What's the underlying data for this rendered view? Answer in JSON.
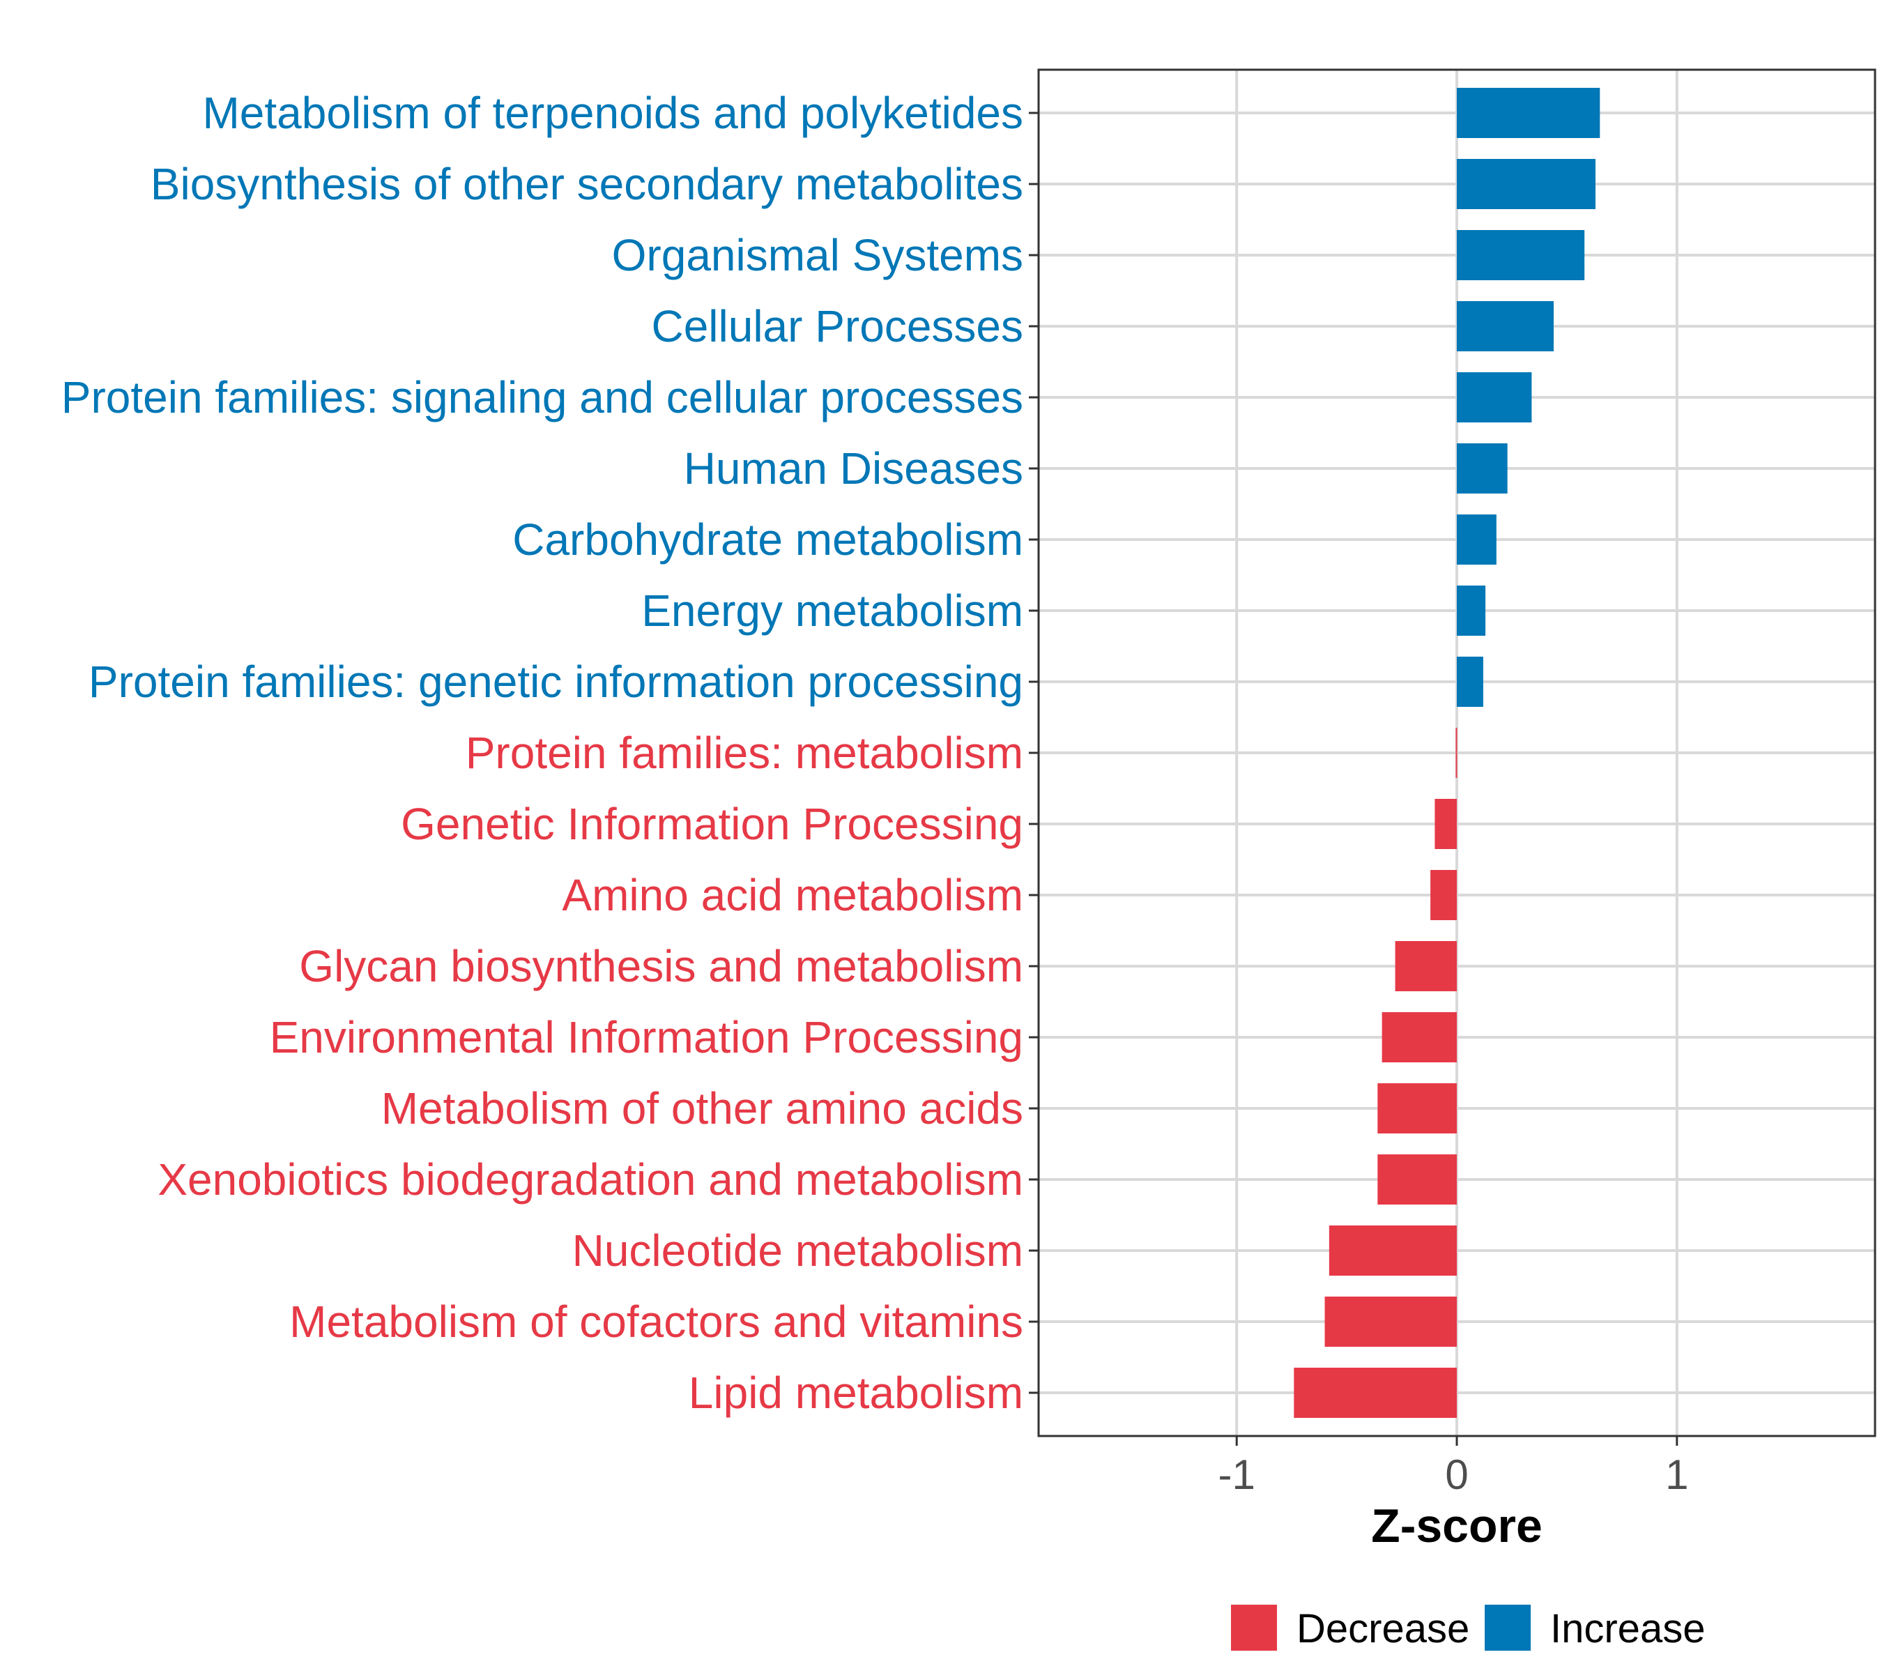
{
  "chart_data": {
    "type": "bar",
    "orientation": "horizontal",
    "categories": [
      "Metabolism of terpenoids and polyketides",
      "Biosynthesis of other secondary metabolites",
      "Organismal Systems",
      "Cellular Processes",
      "Protein families: signaling and cellular processes",
      "Human Diseases",
      "Carbohydrate metabolism",
      "Energy metabolism",
      "Protein families: genetic information processing",
      "Protein families: metabolism",
      "Genetic Information Processing",
      "Amino acid metabolism",
      "Glycan biosynthesis and metabolism",
      "Environmental Information Processing",
      "Metabolism of other amino acids",
      "Xenobiotics biodegradation and metabolism",
      "Nucleotide metabolism",
      "Metabolism of cofactors and vitamins",
      "Lipid metabolism"
    ],
    "values": [
      0.65,
      0.63,
      0.58,
      0.44,
      0.34,
      0.23,
      0.18,
      0.13,
      0.12,
      -0.005,
      -0.1,
      -0.12,
      -0.28,
      -0.34,
      -0.36,
      -0.36,
      -0.58,
      -0.6,
      -0.74
    ],
    "groups": [
      "Increase",
      "Increase",
      "Increase",
      "Increase",
      "Increase",
      "Increase",
      "Increase",
      "Increase",
      "Increase",
      "Decrease",
      "Decrease",
      "Decrease",
      "Decrease",
      "Decrease",
      "Decrease",
      "Decrease",
      "Decrease",
      "Decrease",
      "Decrease"
    ],
    "xlabel": "Z-score",
    "ylabel": "",
    "xlim": [
      -1.9,
      1.9
    ],
    "xticks": [
      -1,
      0,
      1
    ],
    "xtick_labels": [
      "-1",
      "0",
      "1"
    ],
    "grid": true,
    "legend": {
      "placement": "bottom",
      "entries": [
        {
          "label": "Decrease",
          "color": "#e63946"
        },
        {
          "label": "Increase",
          "color": "#0077b6"
        }
      ]
    },
    "colors": {
      "Decrease": "#e63946",
      "Increase": "#0077b6"
    }
  }
}
